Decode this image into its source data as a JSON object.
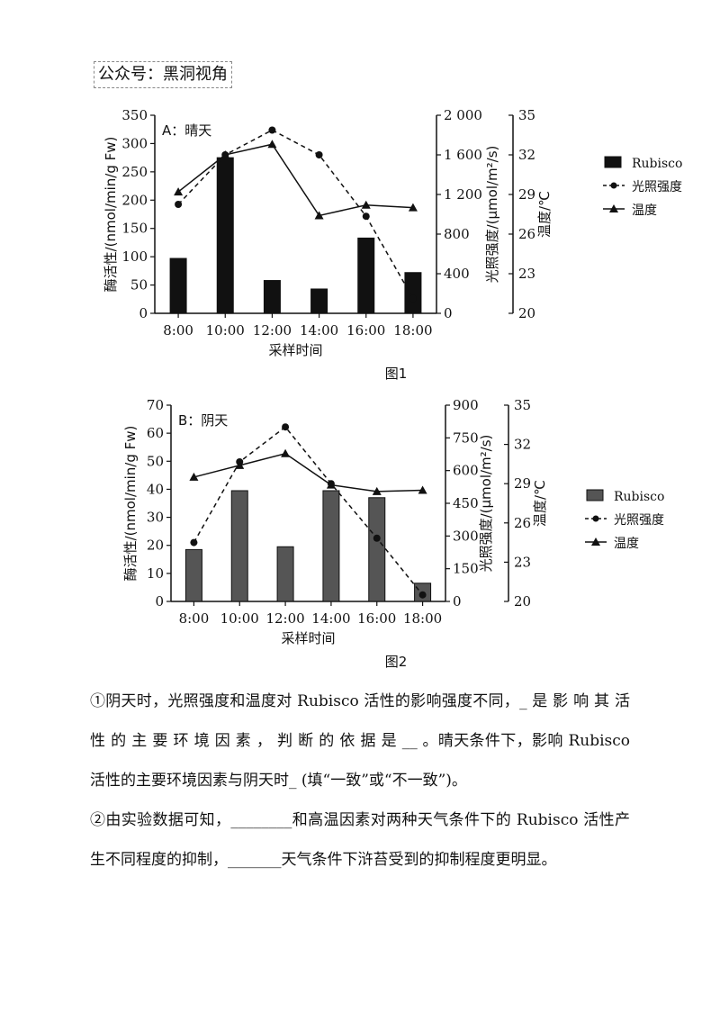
{
  "header": {
    "text": "公众号：黑洞视角"
  },
  "chart_data": [
    {
      "type": "bar",
      "panel_label": "A：晴天",
      "figure_caption": "图1",
      "xlabel": "采样时间",
      "categories": [
        "8:00",
        "10:00",
        "12:00",
        "14:00",
        "16:00",
        "18:00"
      ],
      "y_left": {
        "label": "酶活性/(nmol/min/g Fw)",
        "ylim": [
          0,
          350
        ],
        "ticks": [
          0,
          50,
          100,
          150,
          200,
          250,
          300,
          350
        ]
      },
      "y_mid": {
        "label": "光照强度/(μmol/m²/s)",
        "ylim": [
          0,
          2000
        ],
        "ticks": [
          0,
          400,
          800,
          1200,
          1600,
          2000
        ],
        "tick_labels": [
          "0",
          "400",
          "800",
          "1 200",
          "1 600",
          "2 000"
        ]
      },
      "y_right": {
        "label": "温度/℃",
        "ylim": [
          20,
          35
        ],
        "ticks": [
          20,
          23,
          26,
          29,
          32,
          35
        ]
      },
      "series": [
        {
          "name": "Rubisco",
          "type": "bar",
          "axis": "left",
          "values": [
            97,
            275,
            58,
            43,
            133,
            72
          ]
        },
        {
          "name": "光照强度",
          "type": "dashed-line",
          "axis": "mid",
          "values": [
            1100,
            1600,
            1850,
            1600,
            980,
            150
          ]
        },
        {
          "name": "温度",
          "type": "line",
          "axis": "right",
          "values": [
            29.2,
            32.0,
            32.8,
            27.4,
            28.2,
            28.0
          ]
        }
      ],
      "legend_position": "right"
    },
    {
      "type": "bar",
      "panel_label": "B：阴天",
      "figure_caption": "图2",
      "xlabel": "采样时间",
      "categories": [
        "8:00",
        "10:00",
        "12:00",
        "14:00",
        "16:00",
        "18:00"
      ],
      "y_left": {
        "label": "酶活性/(nmol/min/g Fw)",
        "ylim": [
          0,
          70
        ],
        "ticks": [
          0,
          10,
          20,
          30,
          40,
          50,
          60,
          70
        ]
      },
      "y_mid": {
        "label": "光照强度/(μmol/m²/s)",
        "ylim": [
          0,
          900
        ],
        "ticks": [
          0,
          150,
          300,
          450,
          600,
          750,
          900
        ]
      },
      "y_right": {
        "label": "温度/℃",
        "ylim": [
          20,
          35
        ],
        "ticks": [
          20,
          23,
          26,
          29,
          32,
          35
        ]
      },
      "series": [
        {
          "name": "Rubisco",
          "type": "bar",
          "axis": "left",
          "values": [
            18.5,
            39.5,
            19.5,
            39.5,
            37,
            6.5
          ]
        },
        {
          "name": "光照强度",
          "type": "dashed-line",
          "axis": "mid",
          "values": [
            270,
            640,
            800,
            540,
            290,
            30
          ]
        },
        {
          "name": "温度",
          "type": "line",
          "axis": "right",
          "values": [
            29.5,
            30.4,
            31.3,
            28.9,
            28.4,
            28.5
          ]
        }
      ],
      "legend_position": "right"
    }
  ],
  "questions": [
    "①阴天时，光照强度和温度对 Rubisco 活性的影响强度不同，_ 是 影 响 其 活 性 的 主 要 环 境 因 素 ， 判 断 的 依 据 是 __ 。晴天条件下，影响 Rubisco 活性的主要环境因素与阴天时_ (填“一致”或“不一致”)。",
    "②由实验数据可知，________和高温因素对两种天气条件下的 Rubisco 活性产生不同程度的抑制，_______天气条件下浒苔受到的抑制程度更明显。"
  ]
}
